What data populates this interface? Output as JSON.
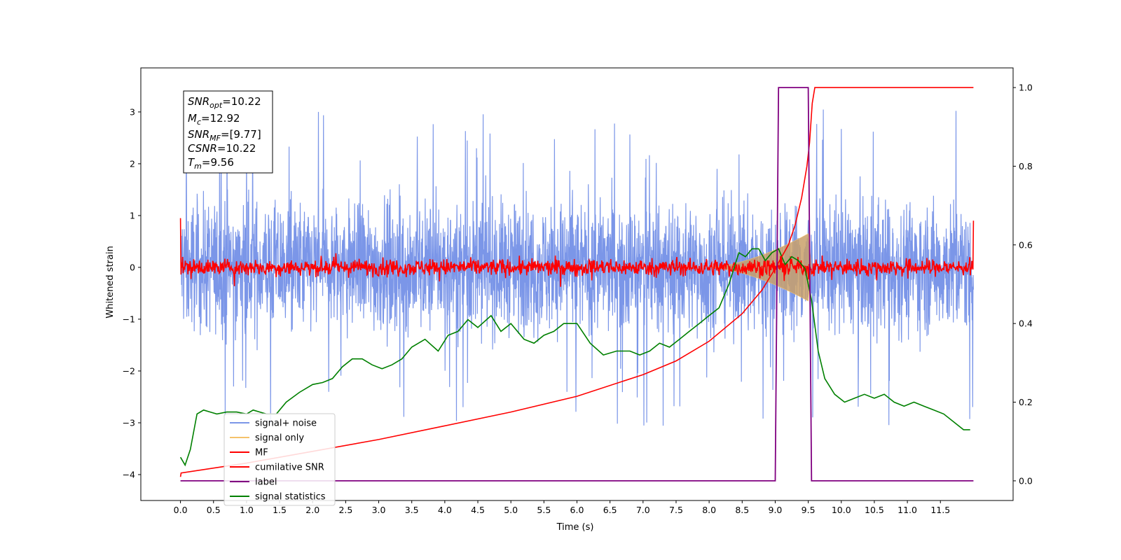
{
  "chart_data": {
    "type": "line",
    "xlabel": "Time (s)",
    "ylabel_left": "Whitened strain",
    "ylabel_right": "",
    "xlim": [
      -0.6,
      12.6
    ],
    "ylim_left": [
      -4.5,
      3.85
    ],
    "ylim_right": [
      -0.05,
      1.05
    ],
    "x_ticks": [
      "0.0",
      "0.5",
      "1.0",
      "1.5",
      "2.0",
      "2.5",
      "3.0",
      "3.5",
      "4.0",
      "4.5",
      "5.0",
      "5.5",
      "6.0",
      "6.5",
      "7.0",
      "7.5",
      "8.0",
      "8.5",
      "9.0",
      "9.5",
      "10.0",
      "10.5",
      "11.0",
      "11.5"
    ],
    "y_ticks_left": [
      "3",
      "2",
      "1",
      "0",
      "−1",
      "−2",
      "−3",
      "−4"
    ],
    "y_ticks_right": [
      "1.0",
      "0.8",
      "0.6",
      "0.4",
      "0.2",
      "0.0"
    ],
    "grid": false,
    "legend_position": "lower-left",
    "stats_box": {
      "snr_opt": {
        "main": "SNR",
        "sub": "opt",
        "value": "=10.22"
      },
      "mc": {
        "main": "M",
        "sub": "c",
        "value": "=12.92"
      },
      "snr_mf": {
        "main": "SNR",
        "sub": "MF",
        "value": "=[9.77]"
      },
      "csnr": {
        "main": "CSNR",
        "value": "=10.22"
      },
      "tm": {
        "main": "T",
        "sub": "m",
        "value": "=9.56"
      }
    },
    "series": [
      {
        "name": "signal+ noise",
        "color": "#7b96e8",
        "axis": "left",
        "x_range": [
          0.0,
          12.0
        ],
        "envelope": {
          "center": 0.0,
          "upper_typical": 1.8,
          "lower_typical": -1.9,
          "max": 3.4,
          "min": -4.15
        }
      },
      {
        "name": "signal only",
        "color": "#f5c26b",
        "axis": "left",
        "chirp": {
          "start": 8.0,
          "peak_time": 9.5,
          "peak_amplitude": 0.65,
          "end": 9.55
        }
      },
      {
        "name": "MF",
        "color": "#ff0000",
        "axis": "left",
        "x_range": [
          0.0,
          12.0
        ],
        "band": {
          "center": 0.0,
          "half_width": 0.18
        }
      },
      {
        "name": "cumilative SNR",
        "color": "#ff0000",
        "axis": "right",
        "x": [
          0.0,
          0.01,
          1.0,
          2.0,
          3.0,
          4.0,
          5.0,
          6.0,
          7.0,
          7.5,
          8.0,
          8.5,
          8.8,
          9.0,
          9.2,
          9.3,
          9.4,
          9.48,
          9.52,
          9.56,
          9.6,
          10.0,
          11.0,
          12.0
        ],
        "y": [
          0.01,
          0.02,
          0.045,
          0.075,
          0.105,
          0.14,
          0.175,
          0.215,
          0.27,
          0.305,
          0.355,
          0.425,
          0.485,
          0.54,
          0.6,
          0.65,
          0.72,
          0.8,
          0.86,
          0.96,
          1.0,
          1.0,
          1.0,
          1.0
        ]
      },
      {
        "name": "label",
        "color": "#800080",
        "axis": "right",
        "x": [
          0.0,
          9.0,
          9.05,
          9.5,
          9.55,
          12.0
        ],
        "y": [
          0.0,
          0.0,
          1.0,
          1.0,
          0.0,
          0.0
        ]
      },
      {
        "name": "signal statistics",
        "color": "#008000",
        "axis": "right",
        "x": [
          0.0,
          0.07,
          0.15,
          0.25,
          0.35,
          0.45,
          0.55,
          0.7,
          0.85,
          1.0,
          1.1,
          1.2,
          1.3,
          1.45,
          1.6,
          1.8,
          2.0,
          2.15,
          2.3,
          2.45,
          2.6,
          2.75,
          2.9,
          3.05,
          3.2,
          3.35,
          3.5,
          3.7,
          3.9,
          4.05,
          4.2,
          4.35,
          4.5,
          4.7,
          4.85,
          5.0,
          5.2,
          5.35,
          5.5,
          5.65,
          5.8,
          6.0,
          6.2,
          6.4,
          6.6,
          6.8,
          6.95,
          7.1,
          7.25,
          7.4,
          7.55,
          7.7,
          7.85,
          8.0,
          8.15,
          8.3,
          8.45,
          8.55,
          8.65,
          8.75,
          8.85,
          8.95,
          9.05,
          9.15,
          9.25,
          9.35,
          9.45,
          9.55,
          9.65,
          9.75,
          9.9,
          10.05,
          10.2,
          10.35,
          10.5,
          10.65,
          10.8,
          10.95,
          11.1,
          11.25,
          11.4,
          11.55,
          11.7,
          11.85,
          11.95
        ],
        "y": [
          0.06,
          0.04,
          0.08,
          0.17,
          0.18,
          0.175,
          0.17,
          0.175,
          0.175,
          0.17,
          0.18,
          0.175,
          0.17,
          0.17,
          0.2,
          0.225,
          0.245,
          0.25,
          0.26,
          0.29,
          0.31,
          0.31,
          0.295,
          0.285,
          0.295,
          0.31,
          0.34,
          0.36,
          0.33,
          0.37,
          0.38,
          0.41,
          0.39,
          0.42,
          0.38,
          0.4,
          0.36,
          0.35,
          0.37,
          0.38,
          0.4,
          0.4,
          0.35,
          0.32,
          0.33,
          0.33,
          0.32,
          0.33,
          0.35,
          0.34,
          0.36,
          0.38,
          0.4,
          0.42,
          0.44,
          0.5,
          0.58,
          0.57,
          0.59,
          0.59,
          0.56,
          0.58,
          0.59,
          0.55,
          0.57,
          0.56,
          0.54,
          0.46,
          0.33,
          0.26,
          0.22,
          0.2,
          0.21,
          0.22,
          0.21,
          0.22,
          0.2,
          0.19,
          0.2,
          0.19,
          0.18,
          0.17,
          0.15,
          0.13,
          0.13
        ]
      }
    ]
  }
}
